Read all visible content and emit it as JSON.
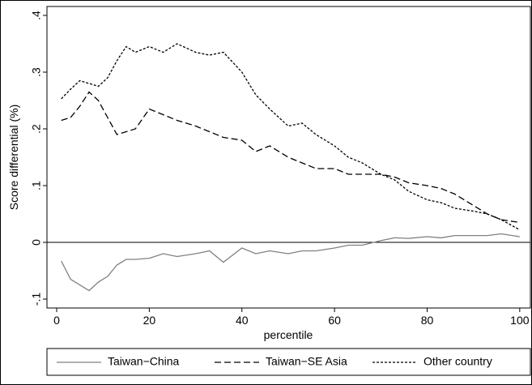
{
  "chart_data": {
    "type": "line",
    "xlabel": "percentile",
    "ylabel": "Score differential (%)",
    "x": [
      1,
      3,
      5,
      7,
      9,
      11,
      13,
      15,
      17,
      20,
      23,
      26,
      30,
      33,
      36,
      40,
      43,
      46,
      50,
      53,
      56,
      60,
      63,
      66,
      70,
      73,
      76,
      80,
      83,
      86,
      90,
      93,
      96,
      100
    ],
    "series": [
      {
        "name": "Taiwan−China",
        "color": "#808080",
        "style": "solid",
        "values": [
          -0.033,
          -0.065,
          -0.075,
          -0.085,
          -0.07,
          -0.06,
          -0.04,
          -0.03,
          -0.03,
          -0.028,
          -0.02,
          -0.025,
          -0.02,
          -0.015,
          -0.035,
          -0.01,
          -0.02,
          -0.015,
          -0.02,
          -0.015,
          -0.015,
          -0.01,
          -0.005,
          -0.005,
          0.003,
          0.008,
          0.007,
          0.01,
          0.008,
          0.012,
          0.012,
          0.012,
          0.015,
          0.01
        ]
      },
      {
        "name": "Taiwan−SE Asia",
        "color": "#000000",
        "style": "dashed",
        "values": [
          0.215,
          0.22,
          0.24,
          0.265,
          0.25,
          0.22,
          0.19,
          0.195,
          0.2,
          0.235,
          0.225,
          0.215,
          0.205,
          0.195,
          0.185,
          0.18,
          0.16,
          0.17,
          0.15,
          0.14,
          0.13,
          0.13,
          0.12,
          0.12,
          0.12,
          0.115,
          0.105,
          0.1,
          0.095,
          0.085,
          0.065,
          0.05,
          0.04,
          0.035
        ]
      },
      {
        "name": "Other country",
        "color": "#000000",
        "style": "dotted",
        "values": [
          0.253,
          0.27,
          0.285,
          0.28,
          0.275,
          0.29,
          0.32,
          0.345,
          0.335,
          0.345,
          0.335,
          0.35,
          0.335,
          0.33,
          0.335,
          0.3,
          0.26,
          0.235,
          0.205,
          0.21,
          0.19,
          0.17,
          0.15,
          0.14,
          0.12,
          0.11,
          0.09,
          0.075,
          0.07,
          0.06,
          0.055,
          0.05,
          0.04,
          0.022
        ]
      }
    ],
    "xlim": [
      -2.1,
      102.3
    ],
    "ylim": [
      -0.1157,
      0.4157
    ],
    "xticks": [
      0,
      20,
      40,
      60,
      80,
      100
    ],
    "yticks": [
      {
        "value": -0.1,
        "label": "-.1"
      },
      0,
      {
        "value": 0.1,
        "label": ".1"
      },
      {
        "value": 0.2,
        "label": ".2"
      },
      {
        "value": 0.3,
        "label": ".3"
      },
      {
        "value": 0.4,
        "label": ".4"
      }
    ],
    "yline": 0,
    "legend": "bottom"
  }
}
